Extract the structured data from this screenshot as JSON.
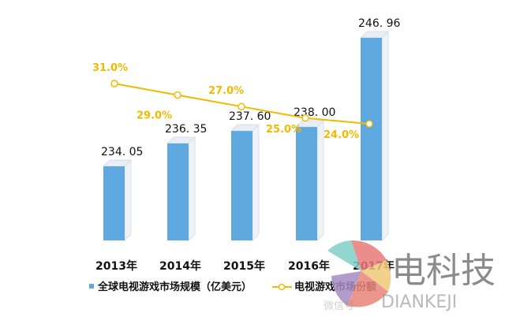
{
  "chart_data": {
    "type": "bar+line",
    "categories": [
      "2013年",
      "2014年",
      "2015年",
      "2016年",
      "2017年"
    ],
    "series": [
      {
        "name": "全球电视游戏市场规模（亿美元）",
        "type": "bar",
        "values": [
          234.05,
          236.35,
          237.6,
          238.0,
          246.96
        ],
        "labels": [
          "234. 05",
          "236. 35",
          "237. 60",
          "238. 00",
          "246. 96"
        ],
        "color": "#5fa8e0"
      },
      {
        "name": "电视游戏市场份额",
        "type": "line",
        "values": [
          31.0,
          29.0,
          27.0,
          25.0,
          24.0
        ],
        "labels": [
          "31.0%",
          "29.0%",
          "27.0%",
          "25.0%",
          "24.0%"
        ],
        "color": "#f5b800"
      }
    ],
    "grid": false,
    "legend": "bottom"
  },
  "watermark": {
    "title": "电科技",
    "subtitle": "DIANKEJI",
    "wechat": "微信号"
  }
}
